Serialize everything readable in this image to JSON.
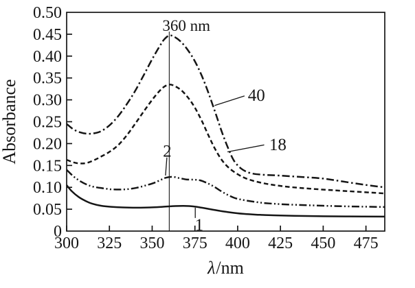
{
  "figure": {
    "background": "#ffffff",
    "ink": "#151515"
  },
  "chart_data": {
    "type": "line",
    "title": "",
    "xlabel": "λ/nm",
    "ylabel": "Absorbance",
    "xlim": [
      300,
      486
    ],
    "ylim": [
      0,
      0.5
    ],
    "grid": false,
    "legend": "none",
    "x_ticks": [
      300,
      325,
      350,
      375,
      400,
      425,
      450,
      475
    ],
    "x_tick_labels": [
      "300",
      "325",
      "350",
      "375",
      "400",
      "425",
      "450",
      "475"
    ],
    "y_ticks": [
      0,
      0.05,
      0.1,
      0.15,
      0.2,
      0.25,
      0.3,
      0.35,
      0.4,
      0.45,
      0.5
    ],
    "y_tick_labels": [
      "0",
      "0.05",
      "0.10",
      "0.15",
      "0.20",
      "0.25",
      "0.30",
      "0.35",
      "0.40",
      "0.45",
      "0.50"
    ],
    "reference_line": {
      "x": 360,
      "label": "360 nm",
      "y_top": 0.456
    },
    "series": [
      {
        "name": "1",
        "style": "solid",
        "points": [
          [
            300,
            0.105
          ],
          [
            303,
            0.091
          ],
          [
            307,
            0.078
          ],
          [
            311,
            0.069
          ],
          [
            315,
            0.0625
          ],
          [
            320,
            0.058
          ],
          [
            326,
            0.0555
          ],
          [
            333,
            0.054
          ],
          [
            341,
            0.0535
          ],
          [
            349,
            0.054
          ],
          [
            356,
            0.0555
          ],
          [
            362,
            0.057
          ],
          [
            368,
            0.0575
          ],
          [
            374,
            0.0565
          ],
          [
            379,
            0.0535
          ],
          [
            384,
            0.05
          ],
          [
            390,
            0.046
          ],
          [
            396,
            0.0425
          ],
          [
            403,
            0.0395
          ],
          [
            411,
            0.0375
          ],
          [
            421,
            0.036
          ],
          [
            433,
            0.035
          ],
          [
            447,
            0.034
          ],
          [
            463,
            0.0335
          ],
          [
            486,
            0.033
          ]
        ]
      },
      {
        "name": "2",
        "style": "dash-dot-dot",
        "points": [
          [
            300,
            0.14
          ],
          [
            304,
            0.125
          ],
          [
            308,
            0.114
          ],
          [
            312,
            0.106
          ],
          [
            316,
            0.101
          ],
          [
            321,
            0.098
          ],
          [
            326,
            0.0955
          ],
          [
            331,
            0.095
          ],
          [
            336,
            0.096
          ],
          [
            341,
            0.099
          ],
          [
            346,
            0.104
          ],
          [
            351,
            0.11
          ],
          [
            355,
            0.117
          ],
          [
            358,
            0.122
          ],
          [
            362,
            0.124
          ],
          [
            366,
            0.121
          ],
          [
            370,
            0.118
          ],
          [
            374,
            0.1175
          ],
          [
            378,
            0.116
          ],
          [
            382,
            0.11
          ],
          [
            386,
            0.102
          ],
          [
            390,
            0.092
          ],
          [
            394,
            0.083
          ],
          [
            398,
            0.076
          ],
          [
            402,
            0.072
          ],
          [
            408,
            0.068
          ],
          [
            416,
            0.064
          ],
          [
            428,
            0.061
          ],
          [
            442,
            0.059
          ],
          [
            458,
            0.057
          ],
          [
            472,
            0.056
          ],
          [
            486,
            0.055
          ]
        ]
      },
      {
        "name": "18",
        "style": "dashed",
        "points": [
          [
            300,
            0.163
          ],
          [
            304,
            0.157
          ],
          [
            308,
            0.1545
          ],
          [
            312,
            0.156
          ],
          [
            316,
            0.162
          ],
          [
            320,
            0.17
          ],
          [
            325,
            0.181
          ],
          [
            330,
            0.196
          ],
          [
            335,
            0.218
          ],
          [
            340,
            0.245
          ],
          [
            345,
            0.273
          ],
          [
            350,
            0.3
          ],
          [
            354,
            0.319
          ],
          [
            357,
            0.33
          ],
          [
            360,
            0.335
          ],
          [
            363,
            0.332
          ],
          [
            367,
            0.322
          ],
          [
            371,
            0.305
          ],
          [
            375,
            0.282
          ],
          [
            379,
            0.252
          ],
          [
            383,
            0.218
          ],
          [
            387,
            0.186
          ],
          [
            391,
            0.161
          ],
          [
            395,
            0.144
          ],
          [
            400,
            0.13
          ],
          [
            405,
            0.12
          ],
          [
            412,
            0.112
          ],
          [
            420,
            0.106
          ],
          [
            430,
            0.101
          ],
          [
            442,
            0.097
          ],
          [
            455,
            0.0935
          ],
          [
            470,
            0.09
          ],
          [
            486,
            0.086
          ]
        ]
      },
      {
        "name": "40",
        "style": "dash-dot",
        "points": [
          [
            300,
            0.245
          ],
          [
            304,
            0.2325
          ],
          [
            308,
            0.2255
          ],
          [
            312,
            0.2225
          ],
          [
            316,
            0.2235
          ],
          [
            320,
            0.228
          ],
          [
            325,
            0.2415
          ],
          [
            330,
            0.262
          ],
          [
            335,
            0.289
          ],
          [
            340,
            0.32
          ],
          [
            345,
            0.356
          ],
          [
            350,
            0.393
          ],
          [
            354,
            0.42
          ],
          [
            357,
            0.438
          ],
          [
            360,
            0.447
          ],
          [
            363,
            0.444
          ],
          [
            367,
            0.432
          ],
          [
            371,
            0.413
          ],
          [
            375,
            0.388
          ],
          [
            379,
            0.355
          ],
          [
            383,
            0.315
          ],
          [
            387,
            0.27
          ],
          [
            391,
            0.224
          ],
          [
            395,
            0.184
          ],
          [
            398,
            0.16
          ],
          [
            402,
            0.143
          ],
          [
            407,
            0.133
          ],
          [
            414,
            0.129
          ],
          [
            424,
            0.127
          ],
          [
            436,
            0.124
          ],
          [
            450,
            0.12
          ],
          [
            462,
            0.113
          ],
          [
            474,
            0.106
          ],
          [
            486,
            0.1
          ]
        ]
      }
    ],
    "annotations": [
      {
        "text": "40",
        "series": "40",
        "label_x": 411,
        "label_y": 0.312,
        "line_from_x": 404,
        "line_from_y": 0.309,
        "tip_x": 386.5,
        "tip_y": 0.287
      },
      {
        "text": "18",
        "series": "18",
        "label_x": 423.5,
        "label_y": 0.199,
        "line_from_x": 415.5,
        "line_from_y": 0.197,
        "tip_x": 394,
        "tip_y": 0.181
      },
      {
        "text": "2",
        "series": "2",
        "label_x": 358.8,
        "label_y": 0.184,
        "line_from_x": 358.6,
        "line_from_y": 0.168,
        "tip_x": 357.8,
        "tip_y": 0.127
      },
      {
        "text": "1",
        "series": "1",
        "label_x": 377.5,
        "label_y": 0.016,
        "line_from_x": 375.2,
        "line_from_y": 0.03,
        "tip_x": 375.2,
        "tip_y": 0.0535
      }
    ]
  }
}
